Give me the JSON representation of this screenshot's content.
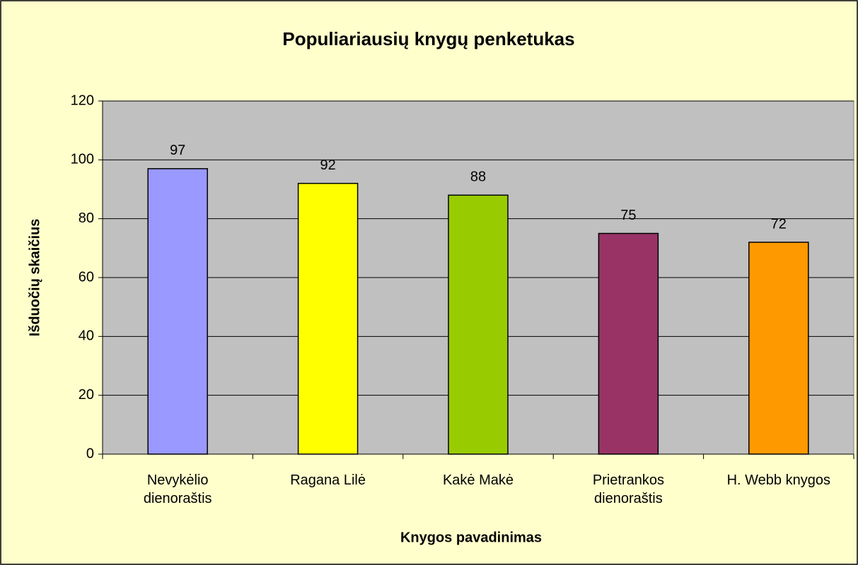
{
  "chart_data": {
    "type": "bar",
    "title": "Populiariausių knygų penketukas",
    "x_label": "Knygos pavadinimas",
    "y_label": "Išduočių skaičius",
    "categories": [
      "Nevykėlio dienoraštis",
      "Ragana Lilė",
      "Kakė Makė",
      "Prietrankos dienoraštis",
      "H. Webb knygos"
    ],
    "values": [
      97,
      92,
      88,
      75,
      72
    ],
    "colors": [
      "#9999FF",
      "#FFFF00",
      "#99CC00",
      "#993366",
      "#FF9900"
    ],
    "ylim": [
      0,
      120
    ],
    "yticks": [
      0,
      20,
      40,
      60,
      80,
      100,
      120
    ],
    "grid": true
  }
}
